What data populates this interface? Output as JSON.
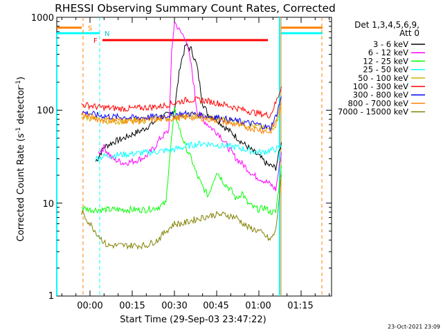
{
  "chart_data": {
    "type": "line",
    "title": "RHESSI Observing Summary Count Rates, Corrected",
    "xlabel": "Start Time (29-Sep-03 23:47:22)",
    "ylabel": "Corrected Count Rate (s⁻¹ detector⁻¹)",
    "ylabel_main": "Corrected Count Rate (s",
    "ylabel_sup1": "-1",
    "ylabel_mid": " detector",
    "ylabel_sup2": "-1",
    "ylabel_end": ")",
    "yscale": "log",
    "ylim": [
      1,
      1000
    ],
    "xlim_minutes": [
      -12,
      30
    ],
    "x_tick_labels": [
      "00:00",
      "00:15",
      "00:30",
      "00:45",
      "01:00",
      "01:15"
    ],
    "y_tick_labels": [
      "1",
      "10",
      "100",
      "1000"
    ],
    "legend_header": [
      "Det 1,3,4,5,6,9,",
      "Att 0"
    ],
    "legend_position": "right",
    "footer": "23-Oct-2021 23:09",
    "flag_labels": {
      "saa": "S",
      "night": "N",
      "flare": "F"
    },
    "colors": {
      "night": "#00ffff",
      "saa": "#ff8000",
      "flare": "#ff0000"
    },
    "series": [
      {
        "name": "3 - 6 keV",
        "color": "#000000",
        "x": [
          2,
          5,
          8,
          12,
          15,
          18,
          20,
          23,
          25,
          28,
          30,
          32,
          34,
          36,
          38,
          40,
          42,
          45,
          48,
          51,
          54,
          57,
          60,
          63,
          66,
          68
        ],
        "y": [
          28,
          40,
          45,
          50,
          55,
          60,
          65,
          75,
          85,
          90,
          100,
          300,
          500,
          450,
          300,
          120,
          90,
          80,
          65,
          55,
          45,
          38,
          32,
          26,
          24,
          45
        ]
      },
      {
        "name": "6 - 12 keV",
        "color": "#ff00ff",
        "x": [
          3,
          5,
          8,
          12,
          15,
          18,
          20,
          23,
          25,
          28,
          29,
          30,
          32,
          34,
          36,
          38,
          40,
          43,
          46,
          49,
          52,
          55,
          58,
          61,
          64,
          66,
          68
        ],
        "y": [
          35,
          40,
          30,
          27,
          28,
          30,
          32,
          40,
          50,
          60,
          400,
          900,
          700,
          600,
          300,
          100,
          80,
          65,
          55,
          40,
          30,
          25,
          20,
          18,
          16,
          14,
          35
        ]
      },
      {
        "name": "12 - 25 keV",
        "color": "#00ff00",
        "x": [
          -3,
          0,
          3,
          6,
          10,
          15,
          20,
          24,
          27,
          28,
          30,
          32,
          34,
          36,
          38,
          40,
          42,
          45,
          48,
          50,
          52,
          54,
          56,
          58,
          60,
          62,
          64,
          66,
          68
        ],
        "y": [
          9,
          8.5,
          8.5,
          8.5,
          8.5,
          8.5,
          8.5,
          9,
          10,
          25,
          100,
          60,
          40,
          30,
          20,
          15,
          12,
          22,
          16,
          14,
          11,
          13,
          10,
          9,
          8.5,
          9,
          8,
          8,
          25
        ]
      },
      {
        "name": "25 - 50 keV",
        "color": "#00ffff",
        "x": [
          2,
          5,
          10,
          15,
          20,
          25,
          30,
          33,
          36,
          40,
          43,
          46,
          49,
          52,
          55,
          58,
          61,
          64,
          66,
          68
        ],
        "y": [
          30,
          32,
          33,
          34,
          35,
          36,
          38,
          40,
          42,
          44,
          43,
          42,
          41,
          40,
          38,
          36,
          35,
          37,
          38,
          40
        ]
      },
      {
        "name": "50 - 100 keV",
        "color": "#d4b000",
        "x": [
          -3,
          0,
          3,
          8,
          12,
          15,
          20,
          25,
          30,
          35,
          40,
          45,
          50,
          55,
          60,
          64,
          66,
          68
        ],
        "y": [
          85,
          82,
          78,
          76,
          76,
          76,
          78,
          82,
          85,
          88,
          86,
          82,
          78,
          70,
          66,
          62,
          70,
          110
        ]
      },
      {
        "name": "100 - 300 keV",
        "color": "#ff0000",
        "x": [
          -3,
          0,
          3,
          8,
          12,
          15,
          20,
          25,
          30,
          35,
          40,
          45,
          50,
          55,
          60,
          64,
          66,
          68
        ],
        "y": [
          115,
          112,
          108,
          105,
          104,
          104,
          107,
          110,
          120,
          130,
          128,
          120,
          110,
          100,
          92,
          88,
          120,
          180
        ]
      },
      {
        "name": "300 - 800 keV",
        "color": "#0000ff",
        "x": [
          -3,
          0,
          3,
          8,
          12,
          15,
          20,
          25,
          30,
          35,
          40,
          45,
          50,
          55,
          60,
          64,
          66,
          68
        ],
        "y": [
          95,
          92,
          88,
          85,
          84,
          83,
          84,
          86,
          90,
          92,
          88,
          84,
          78,
          74,
          70,
          64,
          85,
          140
        ]
      },
      {
        "name": "800 - 7000 keV",
        "color": "#ff8000",
        "x": [
          -3,
          0,
          3,
          8,
          12,
          15,
          20,
          25,
          30,
          35,
          40,
          45,
          50,
          55,
          60,
          64,
          66,
          68
        ],
        "y": [
          90,
          85,
          80,
          78,
          78,
          77,
          78,
          80,
          82,
          84,
          82,
          78,
          72,
          66,
          62,
          58,
          75,
          120
        ]
      },
      {
        "name": "7000 - 15000 keV",
        "color": "#808000",
        "x": [
          -3,
          0,
          3,
          6,
          10,
          15,
          20,
          24,
          27,
          30,
          33,
          36,
          40,
          44,
          48,
          52,
          56,
          60,
          62,
          64,
          66,
          68
        ],
        "y": [
          8,
          6,
          4.5,
          3.5,
          3.5,
          3.5,
          3.5,
          4,
          5,
          6,
          6,
          6.5,
          7,
          7.5,
          7.5,
          7,
          5.5,
          5,
          4.5,
          4,
          5,
          20
        ]
      }
    ]
  }
}
